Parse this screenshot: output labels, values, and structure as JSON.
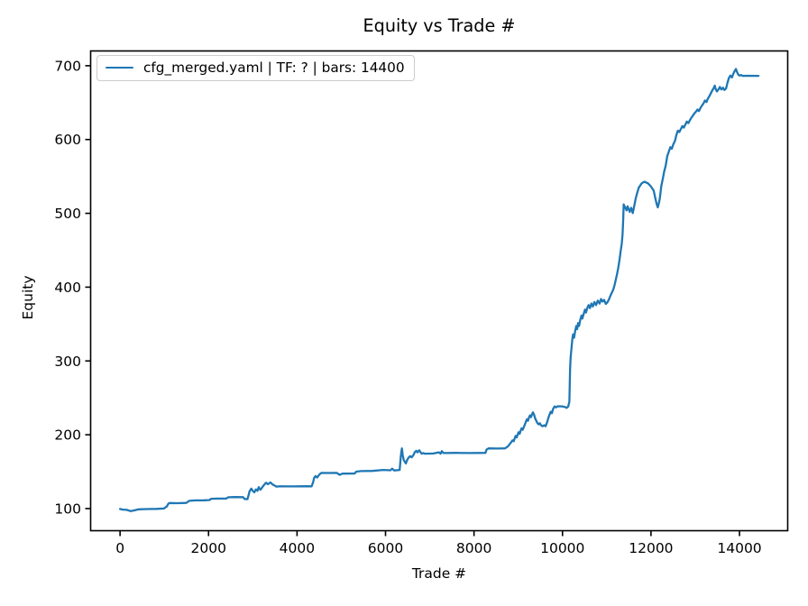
{
  "title": "Equity vs Trade #",
  "xlabel": "Trade #",
  "ylabel": "Equity",
  "legend": {
    "label": "cfg_merged.yaml | TF: ? | bars: 14400",
    "position": "upper left"
  },
  "colors": {
    "line": "#1f77b4",
    "text": "#000000",
    "spine": "#000000",
    "legend_border": "#cccccc",
    "background": "#ffffff"
  },
  "chart_data": {
    "type": "line",
    "title": "Equity vs Trade #",
    "xlabel": "Trade #",
    "ylabel": "Equity",
    "grid": false,
    "legend_position": "upper left",
    "xticks": [
      0,
      2000,
      4000,
      6000,
      8000,
      10000,
      12000,
      14000
    ],
    "yticks": [
      100,
      200,
      300,
      400,
      500,
      600,
      700
    ],
    "xlim": [
      -665,
      15090
    ],
    "ylim": [
      70,
      720
    ],
    "series": [
      {
        "name": "cfg_merged.yaml | TF: ? | bars: 14400",
        "color": "#1f77b4",
        "points": [
          [
            0,
            99.5
          ],
          [
            60,
            98.6
          ],
          [
            150,
            98.2
          ],
          [
            240,
            96.5
          ],
          [
            320,
            97.5
          ],
          [
            420,
            99.0
          ],
          [
            600,
            99.3
          ],
          [
            820,
            99.6
          ],
          [
            990,
            100.0
          ],
          [
            1060,
            103.0
          ],
          [
            1090,
            106.5
          ],
          [
            1120,
            107.5
          ],
          [
            1300,
            107.3
          ],
          [
            1490,
            107.6
          ],
          [
            1530,
            109.0
          ],
          [
            1560,
            110.5
          ],
          [
            1700,
            111.0
          ],
          [
            1900,
            111.2
          ],
          [
            2020,
            111.5
          ],
          [
            2060,
            113.2
          ],
          [
            2200,
            113.5
          ],
          [
            2400,
            113.6
          ],
          [
            2450,
            115.3
          ],
          [
            2600,
            115.6
          ],
          [
            2780,
            115.5
          ],
          [
            2815,
            113.0
          ],
          [
            2880,
            112.8
          ],
          [
            2915,
            120.0
          ],
          [
            2925,
            123.0
          ],
          [
            2965,
            127.0
          ],
          [
            3000,
            124.0
          ],
          [
            3035,
            122.0
          ],
          [
            3070,
            126.0
          ],
          [
            3105,
            124.0
          ],
          [
            3135,
            129.0
          ],
          [
            3170,
            125.5
          ],
          [
            3205,
            128.0
          ],
          [
            3240,
            131.0
          ],
          [
            3270,
            133.0
          ],
          [
            3300,
            135.0
          ],
          [
            3340,
            133.0
          ],
          [
            3400,
            135.4
          ],
          [
            3450,
            132.6
          ],
          [
            3500,
            131.0
          ],
          [
            3530,
            129.8
          ],
          [
            3600,
            130.1
          ],
          [
            3900,
            130.0
          ],
          [
            4200,
            130.2
          ],
          [
            4330,
            130.1
          ],
          [
            4365,
            136.0
          ],
          [
            4385,
            141.5
          ],
          [
            4420,
            144.0
          ],
          [
            4455,
            142.0
          ],
          [
            4490,
            145.0
          ],
          [
            4520,
            147.0
          ],
          [
            4555,
            148.3
          ],
          [
            4700,
            148.2
          ],
          [
            4900,
            148.3
          ],
          [
            4963,
            145.8
          ],
          [
            5030,
            147.4
          ],
          [
            5300,
            147.5
          ],
          [
            5340,
            150.0
          ],
          [
            5450,
            150.8
          ],
          [
            5700,
            151.0
          ],
          [
            5950,
            152.3
          ],
          [
            6110,
            151.8
          ],
          [
            6150,
            154.0
          ],
          [
            6200,
            151.6
          ],
          [
            6320,
            152.4
          ],
          [
            6345,
            170.0
          ],
          [
            6360,
            178.0
          ],
          [
            6370,
            181.5
          ],
          [
            6390,
            172.0
          ],
          [
            6412,
            166.0
          ],
          [
            6440,
            162.8
          ],
          [
            6460,
            161.2
          ],
          [
            6490,
            166.0
          ],
          [
            6525,
            169.3
          ],
          [
            6558,
            171.0
          ],
          [
            6590,
            169.4
          ],
          [
            6628,
            172.1
          ],
          [
            6660,
            176.2
          ],
          [
            6695,
            178.2
          ],
          [
            6722,
            176.2
          ],
          [
            6763,
            179.0
          ],
          [
            6790,
            176.3
          ],
          [
            6820,
            174.3
          ],
          [
            6852,
            175.2
          ],
          [
            6890,
            174.3
          ],
          [
            7080,
            174.6
          ],
          [
            7205,
            176.2
          ],
          [
            7245,
            174.4
          ],
          [
            7272,
            177.8
          ],
          [
            7310,
            175.2
          ],
          [
            7600,
            175.4
          ],
          [
            7900,
            175.2
          ],
          [
            8258,
            175.4
          ],
          [
            8285,
            180.0
          ],
          [
            8330,
            181.6
          ],
          [
            8520,
            181.3
          ],
          [
            8700,
            181.5
          ],
          [
            8768,
            184.3
          ],
          [
            8802,
            187.1
          ],
          [
            8836,
            189.6
          ],
          [
            8870,
            192.4
          ],
          [
            8898,
            191.2
          ],
          [
            8920,
            195.3
          ],
          [
            8940,
            198.5
          ],
          [
            8965,
            196.5
          ],
          [
            8990,
            200.6
          ],
          [
            9008,
            203.4
          ],
          [
            9032,
            201.4
          ],
          [
            9056,
            205.9
          ],
          [
            9075,
            208.7
          ],
          [
            9100,
            206.7
          ],
          [
            9122,
            209.9
          ],
          [
            9142,
            212.8
          ],
          [
            9176,
            218.1
          ],
          [
            9196,
            220.9
          ],
          [
            9220,
            218.9
          ],
          [
            9244,
            223.8
          ],
          [
            9264,
            226.2
          ],
          [
            9288,
            223.8
          ],
          [
            9312,
            227.9
          ],
          [
            9332,
            230.3
          ],
          [
            9358,
            227.0
          ],
          [
            9382,
            222.2
          ],
          [
            9408,
            218.9
          ],
          [
            9434,
            215.6
          ],
          [
            9460,
            214.0
          ],
          [
            9488,
            215.6
          ],
          [
            9516,
            212.8
          ],
          [
            9550,
            211.5
          ],
          [
            9584,
            212.8
          ],
          [
            9618,
            211.5
          ],
          [
            9652,
            216.8
          ],
          [
            9680,
            223.0
          ],
          [
            9706,
            227.0
          ],
          [
            9733,
            231.1
          ],
          [
            9760,
            229.2
          ],
          [
            9788,
            235.2
          ],
          [
            9822,
            238.4
          ],
          [
            9855,
            237.2
          ],
          [
            9890,
            238.6
          ],
          [
            10000,
            238.4
          ],
          [
            10060,
            237.5
          ],
          [
            10095,
            236.4
          ],
          [
            10130,
            238.2
          ],
          [
            10155,
            245.0
          ],
          [
            10163,
            268.0
          ],
          [
            10172,
            290.0
          ],
          [
            10185,
            305.0
          ],
          [
            10205,
            318.0
          ],
          [
            10222,
            330.0
          ],
          [
            10240,
            336.0
          ],
          [
            10262,
            331.5
          ],
          [
            10288,
            341.0
          ],
          [
            10310,
            347.2
          ],
          [
            10330,
            343.1
          ],
          [
            10352,
            351.3
          ],
          [
            10374,
            347.3
          ],
          [
            10400,
            355.4
          ],
          [
            10428,
            361.5
          ],
          [
            10450,
            357.4
          ],
          [
            10478,
            363.5
          ],
          [
            10508,
            369.6
          ],
          [
            10530,
            365.5
          ],
          [
            10560,
            371.6
          ],
          [
            10590,
            375.7
          ],
          [
            10620,
            371.6
          ],
          [
            10652,
            377.8
          ],
          [
            10685,
            373.7
          ],
          [
            10720,
            379.8
          ],
          [
            10758,
            375.7
          ],
          [
            10798,
            381.8
          ],
          [
            10838,
            377.8
          ],
          [
            10870,
            383.9
          ],
          [
            10905,
            380.5
          ],
          [
            10940,
            382.7
          ],
          [
            10980,
            377.2
          ],
          [
            11015,
            379.5
          ],
          [
            11050,
            383.5
          ],
          [
            11080,
            388.0
          ],
          [
            11112,
            392.1
          ],
          [
            11144,
            396.1
          ],
          [
            11175,
            402.2
          ],
          [
            11205,
            410.3
          ],
          [
            11235,
            418.5
          ],
          [
            11262,
            427.0
          ],
          [
            11290,
            438.0
          ],
          [
            11318,
            450.0
          ],
          [
            11340,
            459.3
          ],
          [
            11358,
            472.0
          ],
          [
            11372,
            492.0
          ],
          [
            11382,
            512.0
          ],
          [
            11415,
            508.0
          ],
          [
            11448,
            504.0
          ],
          [
            11470,
            509.5
          ],
          [
            11500,
            505.0
          ],
          [
            11520,
            502.0
          ],
          [
            11552,
            507.5
          ],
          [
            11588,
            500.3
          ],
          [
            11622,
            510.0
          ],
          [
            11655,
            520.4
          ],
          [
            11690,
            528.0
          ],
          [
            11722,
            534.6
          ],
          [
            11760,
            538.0
          ],
          [
            11790,
            540.8
          ],
          [
            11825,
            542.0
          ],
          [
            11858,
            542.8
          ],
          [
            11895,
            541.6
          ],
          [
            11928,
            540.8
          ],
          [
            11962,
            538.8
          ],
          [
            11995,
            536.7
          ],
          [
            12030,
            533.5
          ],
          [
            12062,
            530.6
          ],
          [
            12098,
            520.4
          ],
          [
            12130,
            512.2
          ],
          [
            12152,
            508.1
          ],
          [
            12180,
            514.0
          ],
          [
            12200,
            520.4
          ],
          [
            12232,
            536.7
          ],
          [
            12268,
            546.9
          ],
          [
            12300,
            557.1
          ],
          [
            12335,
            565.2
          ],
          [
            12368,
            577.4
          ],
          [
            12402,
            583.5
          ],
          [
            12438,
            589.6
          ],
          [
            12470,
            587.6
          ],
          [
            12505,
            593.7
          ],
          [
            12540,
            597.8
          ],
          [
            12573,
            605.9
          ],
          [
            12607,
            612.0
          ],
          [
            12640,
            610.1
          ],
          [
            12675,
            614.1
          ],
          [
            12710,
            618.2
          ],
          [
            12743,
            616.1
          ],
          [
            12777,
            620.2
          ],
          [
            12810,
            624.3
          ],
          [
            12845,
            622.2
          ],
          [
            12880,
            626.3
          ],
          [
            12913,
            629.6
          ],
          [
            12947,
            632.4
          ],
          [
            12980,
            635.3
          ],
          [
            13015,
            637.7
          ],
          [
            13050,
            640.6
          ],
          [
            13083,
            638.5
          ],
          [
            13117,
            642.6
          ],
          [
            13150,
            645.8
          ],
          [
            13185,
            648.7
          ],
          [
            13218,
            652.8
          ],
          [
            13253,
            650.7
          ],
          [
            13287,
            655.6
          ],
          [
            13320,
            658.9
          ],
          [
            13355,
            663.0
          ],
          [
            13390,
            667.1
          ],
          [
            13423,
            670.3
          ],
          [
            13442,
            673.1
          ],
          [
            13458,
            669.1
          ],
          [
            13490,
            665.2
          ],
          [
            13524,
            667.8
          ],
          [
            13558,
            671.1
          ],
          [
            13592,
            667.8
          ],
          [
            13626,
            670.3
          ],
          [
            13660,
            667.1
          ],
          [
            13695,
            669.1
          ],
          [
            13730,
            677.2
          ],
          [
            13762,
            683.3
          ],
          [
            13796,
            686.6
          ],
          [
            13830,
            684.1
          ],
          [
            13864,
            689.4
          ],
          [
            13898,
            693.5
          ],
          [
            13920,
            695.6
          ],
          [
            13944,
            691.5
          ],
          [
            13968,
            688.2
          ],
          [
            14000,
            686.6
          ],
          [
            14034,
            687.4
          ],
          [
            14070,
            686.3
          ],
          [
            14200,
            686.4
          ],
          [
            14430,
            686.3
          ]
        ]
      }
    ]
  }
}
